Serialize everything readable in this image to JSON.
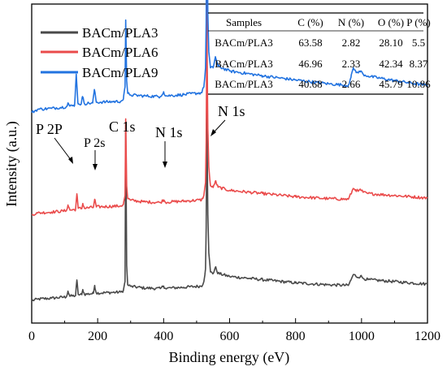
{
  "chart_data": {
    "type": "line",
    "title": "",
    "xlabel": "Binding energy (eV)",
    "ylabel": "Intensity (a.u.)",
    "xlim": [
      0,
      1200
    ],
    "ylim": [
      0,
      100
    ],
    "x_ticks": [
      0,
      200,
      400,
      600,
      800,
      1000,
      1200
    ],
    "y_ticks_shown": false,
    "grid": false,
    "legend": {
      "position": "top-left"
    },
    "series": [
      {
        "name": "BACm/PLA3",
        "color": "#4a4a4a",
        "offset": 4,
        "points": [
          [
            0,
            3
          ],
          [
            18,
            3.5
          ],
          [
            60,
            3.8
          ],
          [
            105,
            4.2
          ],
          [
            110,
            6
          ],
          [
            116,
            4.4
          ],
          [
            133,
            4.6
          ],
          [
            137,
            9.5
          ],
          [
            141,
            5
          ],
          [
            152,
            4.9
          ],
          [
            155,
            6.5
          ],
          [
            160,
            5
          ],
          [
            187,
            5.3
          ],
          [
            191,
            7.8
          ],
          [
            196,
            5.4
          ],
          [
            270,
            5.7
          ],
          [
            278,
            6.2
          ],
          [
            283,
            9
          ],
          [
            285,
            59
          ],
          [
            288,
            14
          ],
          [
            291,
            8
          ],
          [
            300,
            7.5
          ],
          [
            340,
            7
          ],
          [
            390,
            6.8
          ],
          [
            400,
            7.6
          ],
          [
            405,
            6.9
          ],
          [
            460,
            7.2
          ],
          [
            515,
            7.6
          ],
          [
            522,
            9
          ],
          [
            527,
            13
          ],
          [
            529,
            26
          ],
          [
            530,
            43
          ],
          [
            531,
            78
          ],
          [
            532,
            52
          ],
          [
            534,
            30
          ],
          [
            537,
            18
          ],
          [
            542,
            12
          ],
          [
            550,
            11.5
          ],
          [
            557,
            13.5
          ],
          [
            565,
            11.6
          ],
          [
            600,
            10.6
          ],
          [
            700,
            9.6
          ],
          [
            800,
            8.6
          ],
          [
            900,
            8
          ],
          [
            960,
            7.8
          ],
          [
            968,
            9.5
          ],
          [
            975,
            11.2
          ],
          [
            982,
            10.8
          ],
          [
            990,
            10.3
          ],
          [
            997,
            10.8
          ],
          [
            1005,
            10
          ],
          [
            1020,
            9.6
          ],
          [
            1100,
            9
          ],
          [
            1200,
            8.2
          ]
        ]
      },
      {
        "name": "BACm/PLA6",
        "color": "#ea4b4b",
        "offset": 31,
        "points": [
          [
            0,
            3
          ],
          [
            18,
            3.5
          ],
          [
            60,
            3.8
          ],
          [
            105,
            4.2
          ],
          [
            110,
            6
          ],
          [
            116,
            4.4
          ],
          [
            133,
            4.6
          ],
          [
            137,
            9.5
          ],
          [
            141,
            5
          ],
          [
            152,
            4.9
          ],
          [
            155,
            6.5
          ],
          [
            160,
            5
          ],
          [
            187,
            5.3
          ],
          [
            191,
            7.8
          ],
          [
            196,
            5.4
          ],
          [
            270,
            5.7
          ],
          [
            278,
            6.2
          ],
          [
            283,
            9
          ],
          [
            285,
            33
          ],
          [
            288,
            12
          ],
          [
            291,
            8
          ],
          [
            300,
            7.5
          ],
          [
            340,
            7
          ],
          [
            390,
            6.8
          ],
          [
            400,
            7.6
          ],
          [
            405,
            6.9
          ],
          [
            460,
            7.2
          ],
          [
            515,
            7.6
          ],
          [
            522,
            9
          ],
          [
            527,
            13
          ],
          [
            529,
            26
          ],
          [
            530,
            43
          ],
          [
            531,
            80
          ],
          [
            532,
            52
          ],
          [
            534,
            30
          ],
          [
            537,
            18
          ],
          [
            542,
            12
          ],
          [
            550,
            11.5
          ],
          [
            557,
            13.5
          ],
          [
            565,
            11.6
          ],
          [
            600,
            10.6
          ],
          [
            700,
            9.6
          ],
          [
            800,
            8.6
          ],
          [
            900,
            8
          ],
          [
            960,
            7.8
          ],
          [
            968,
            9.5
          ],
          [
            975,
            11.2
          ],
          [
            982,
            10.8
          ],
          [
            990,
            10.3
          ],
          [
            997,
            10.8
          ],
          [
            1005,
            10
          ],
          [
            1020,
            9.6
          ],
          [
            1100,
            9
          ],
          [
            1200,
            8.2
          ]
        ]
      },
      {
        "name": "BACm/PLA9",
        "color": "#2273e0",
        "offset": 63,
        "points": [
          [
            0,
            3
          ],
          [
            18,
            4
          ],
          [
            60,
            4.3
          ],
          [
            105,
            4.8
          ],
          [
            110,
            6
          ],
          [
            116,
            5
          ],
          [
            130,
            5.2
          ],
          [
            135,
            15
          ],
          [
            140,
            6
          ],
          [
            150,
            5.6
          ],
          [
            154,
            8
          ],
          [
            160,
            5.8
          ],
          [
            185,
            6
          ],
          [
            190,
            10.2
          ],
          [
            196,
            6.2
          ],
          [
            270,
            6.5
          ],
          [
            278,
            7.2
          ],
          [
            283,
            11
          ],
          [
            285,
            32
          ],
          [
            288,
            13
          ],
          [
            291,
            9
          ],
          [
            300,
            8.5
          ],
          [
            340,
            8.2
          ],
          [
            390,
            8
          ],
          [
            400,
            9.5
          ],
          [
            405,
            8.2
          ],
          [
            460,
            8.6
          ],
          [
            515,
            9.2
          ],
          [
            522,
            11
          ],
          [
            527,
            17
          ],
          [
            529,
            31
          ],
          [
            530,
            50
          ],
          [
            531,
            85
          ],
          [
            532,
            58
          ],
          [
            534,
            34
          ],
          [
            537,
            22
          ],
          [
            542,
            17
          ],
          [
            550,
            17
          ],
          [
            557,
            20.5
          ],
          [
            565,
            17.5
          ],
          [
            600,
            16
          ],
          [
            700,
            14.5
          ],
          [
            800,
            13.2
          ],
          [
            900,
            12
          ],
          [
            960,
            11.5
          ],
          [
            968,
            14
          ],
          [
            975,
            17
          ],
          [
            982,
            16
          ],
          [
            990,
            15.4
          ],
          [
            997,
            16
          ],
          [
            1005,
            15
          ],
          [
            1020,
            14.4
          ],
          [
            1100,
            13
          ],
          [
            1200,
            11.5
          ]
        ]
      }
    ],
    "annotations": [
      {
        "text": "P 2P",
        "arrow_to_x": 135
      },
      {
        "text": "P 2s",
        "arrow_to_x": 190
      },
      {
        "text": "C 1s"
      },
      {
        "text": "N 1s",
        "arrow_to_x": 400
      },
      {
        "text": "N 1s",
        "arrow_to_x": 531
      }
    ],
    "table": {
      "headers": [
        "Samples",
        "C (%)",
        "N (%)",
        "O (%)",
        "P (%)"
      ],
      "rows": [
        [
          "BACm/PLA3",
          "63.58",
          "2.82",
          "28.10",
          "5.5"
        ],
        [
          "BACm/PLA3",
          "46.96",
          "2.33",
          "42.34",
          "8.37"
        ],
        [
          "BACm/PLA3",
          "40.68",
          "2.66",
          "45.79",
          "10.86"
        ]
      ]
    }
  }
}
